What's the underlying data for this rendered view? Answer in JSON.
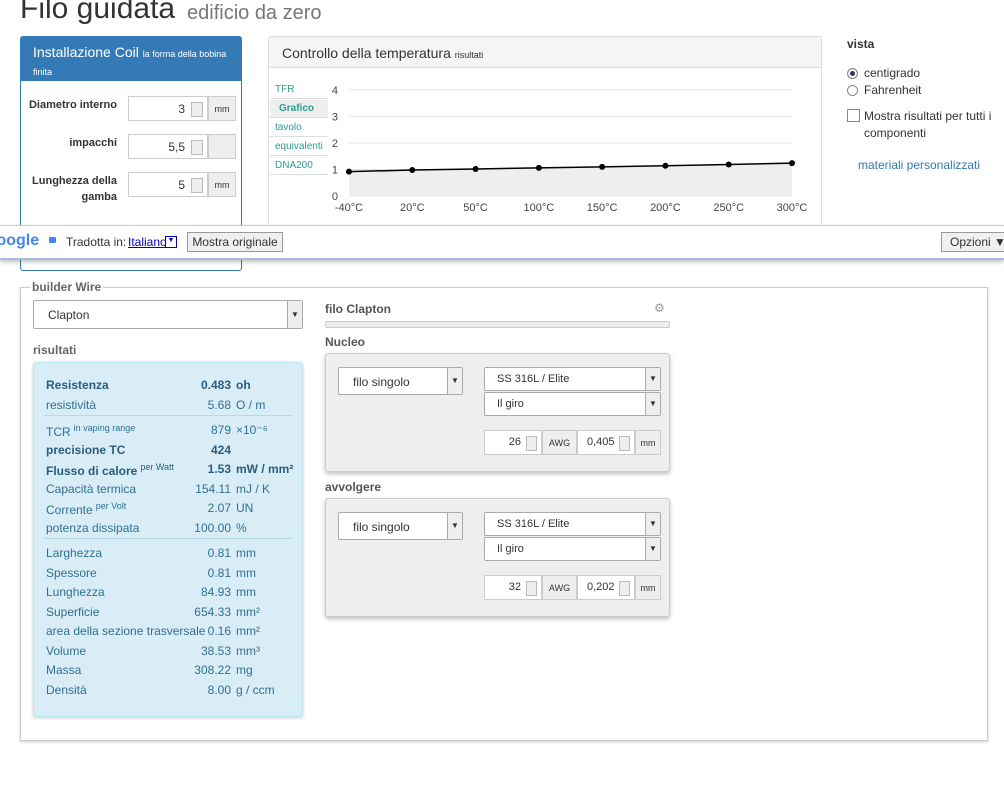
{
  "header": {
    "title": "Filo guidata",
    "subtitle": "edificio da zero"
  },
  "coil": {
    "title": "Installazione Coil",
    "subtitle": "la forma della bobina finita",
    "fields": [
      {
        "label": "Diametro interno",
        "value": "3",
        "unit": "mm"
      },
      {
        "label": "impacchi",
        "value": "5,5"
      },
      {
        "label": "Lunghezza della gamba",
        "value": "5",
        "unit": "mm"
      }
    ]
  },
  "temperature": {
    "title": "Controllo della temperatura",
    "subtitle": "risultati",
    "tabs": [
      "TFR",
      "Grafico",
      "tavolo",
      "equivalenti",
      "DNA200"
    ]
  },
  "chart_data": {
    "type": "line",
    "categories": [
      "-40°C",
      "20°C",
      "50°C",
      "100°C",
      "150°C",
      "200°C",
      "250°C",
      "300°C"
    ],
    "values": [
      0.92,
      0.98,
      1.02,
      1.06,
      1.1,
      1.14,
      1.19,
      1.24
    ],
    "color": "#000000",
    "ylim": [
      0,
      4
    ],
    "yticks": [
      0,
      1,
      2,
      3,
      4
    ],
    "grid": true
  },
  "view": {
    "title": "vista",
    "options": [
      "centigrado",
      "Fahrenheit"
    ],
    "checkbox": "Mostra risultati per tutti i componenti",
    "link": "materiali personalizzati"
  },
  "translate_bar": {
    "brand": "Google",
    "label": "Tradotta in:",
    "language": "Italiano",
    "button": "Mostra originale",
    "options": "Opzioni ▼"
  },
  "builder": {
    "legend": "builder Wire",
    "wire_type": "Clapton",
    "results_title": "risultati",
    "results": [
      [
        {
          "label": "Resistenza",
          "value": "0.483",
          "unit": "oh"
        },
        {
          "label": "resistività",
          "value": "5.68",
          "unit": "O / m"
        }
      ],
      [
        {
          "label": "TCR",
          "note": "in vaping range",
          "value": "879",
          "unit": "×10⁻⁶"
        },
        {
          "label": "precisione TC",
          "value": "424"
        },
        {
          "label": "Flusso di calore",
          "note": "per Watt",
          "value": "1.53",
          "unit": "mW / mm²"
        },
        {
          "label": "Capacità termica",
          "value": "154.11",
          "unit": "mJ / K"
        },
        {
          "label": "Corrente",
          "note": "per Volt",
          "value": "2.07",
          "unit": "UN"
        },
        {
          "label": "potenza dissipata",
          "value": "100.00",
          "unit": "%"
        }
      ],
      [
        {
          "label": "Larghezza",
          "value": "0.81",
          "unit": "mm"
        },
        {
          "label": "Spessore",
          "value": "0.81",
          "unit": "mm"
        },
        {
          "label": "Lunghezza",
          "value": "84.93",
          "unit": "mm"
        },
        {
          "label": "Superficie",
          "value": "654.33",
          "unit": "mm²"
        },
        {
          "label": "area della sezione trasversale",
          "value": "0.16",
          "unit": "mm²"
        },
        {
          "label": "Volume",
          "value": "38.53",
          "unit": "mm³"
        },
        {
          "label": "Massa",
          "value": "308.22",
          "unit": "mg"
        },
        {
          "label": "Densità",
          "value": "8.00",
          "unit": "g / ccm"
        }
      ]
    ],
    "wire": {
      "title": "filo Clapton",
      "sections": [
        {
          "title": "Nucleo",
          "kind": "filo singolo",
          "material": "SS 316L / Elite",
          "twist": "Il giro",
          "gauge": "26",
          "gauge_unit": "AWG",
          "diameter": "0,405",
          "diameter_unit": "mm"
        },
        {
          "title": "avvolgere",
          "kind": "filo singolo",
          "material": "SS 316L / Elite",
          "twist": "Il giro",
          "gauge": "32",
          "gauge_unit": "AWG",
          "diameter": "0,202",
          "diameter_unit": "mm"
        }
      ]
    }
  }
}
